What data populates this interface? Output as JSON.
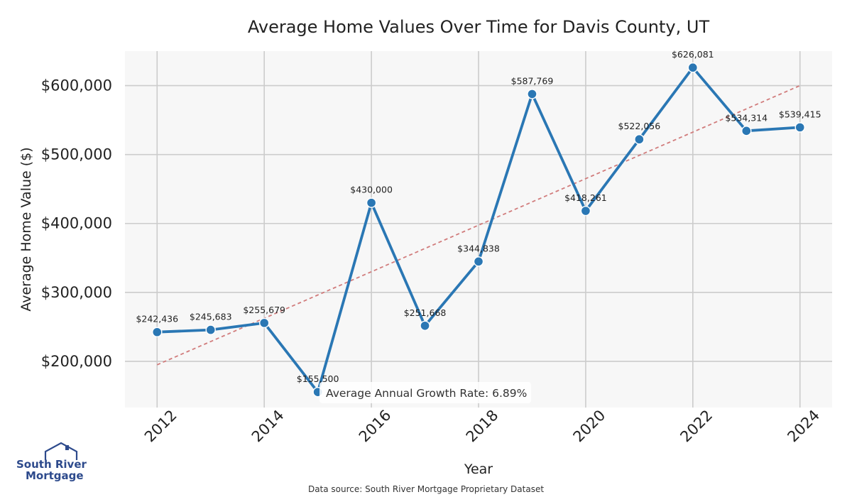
{
  "chart_data": {
    "type": "line",
    "title": "Average Home Values Over Time for Davis County, UT",
    "xlabel": "Year",
    "ylabel": "Average Home Value ($)",
    "x": [
      2012,
      2013,
      2014,
      2015,
      2016,
      2017,
      2018,
      2019,
      2020,
      2021,
      2022,
      2023,
      2024
    ],
    "values": [
      242436,
      245683,
      255679,
      155500,
      430000,
      251668,
      344838,
      587769,
      418261,
      522056,
      626081,
      534314,
      539415
    ],
    "data_labels": [
      "$242,436",
      "$245,683",
      "$255,679",
      "$155,500",
      "$430,000",
      "$251,668",
      "$344,838",
      "$587,769",
      "$418,261",
      "$522,056",
      "$626,081",
      "$534,314",
      "$539,415"
    ],
    "xticks": [
      "2012",
      "2014",
      "2016",
      "2018",
      "2020",
      "2022",
      "2024"
    ],
    "yticks": [
      "$200,000",
      "$300,000",
      "$400,000",
      "$500,000",
      "$600,000"
    ],
    "ytick_values": [
      200000,
      300000,
      400000,
      500000,
      600000
    ],
    "ylim": [
      133000,
      650000
    ],
    "xlim": [
      2011.4,
      2024.6
    ],
    "trend": {
      "start": [
        2012,
        195000
      ],
      "end": [
        2024,
        600000
      ]
    },
    "annotation": "Average Annual Growth Rate: 6.89%",
    "grid": true,
    "colors": {
      "line": "#2a77b4",
      "trend": "#d17c7c",
      "plot_bg": "#f7f7f7",
      "grid": "#cccccc"
    }
  },
  "footer": {
    "source": "Data source: South River Mortgage Proprietary Dataset"
  },
  "logo": {
    "line1": "South River",
    "line2": "Mortgage"
  }
}
